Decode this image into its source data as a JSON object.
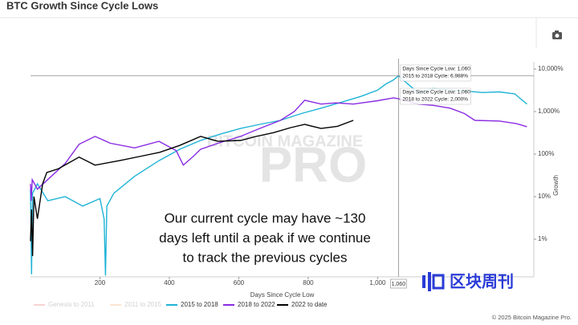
{
  "chart_data": {
    "type": "line",
    "title": "BTC Growth Since Cycle Lows",
    "x_label": "Days Since Cycle Low",
    "y_label": "Growth",
    "log_y": true,
    "xlim": [
      0,
      1450
    ],
    "ylim": [
      0.13,
      14800
    ],
    "xticks": [
      200,
      400,
      600,
      800,
      {
        "value": 1000,
        "label": "1,000"
      }
    ],
    "yticks": [
      {
        "value": 1,
        "label": "1%"
      },
      {
        "value": 10,
        "label": "10%"
      },
      {
        "value": 100,
        "label": "100%"
      },
      {
        "value": 1000,
        "label": "1,000%"
      },
      {
        "value": 10000,
        "label": "10,000%"
      }
    ],
    "crosshair": {
      "x": 1060,
      "x_label": "1,060",
      "y": 6988
    },
    "tooltips": [
      [
        "Days Since Cycle Low: 1,060",
        "2015 to 2018 Cycle: 6,988%"
      ],
      [
        "Days Since Cycle Low: 1,060",
        "2018 to 2022 Cycle: 2,000%"
      ]
    ],
    "annotation": [
      "Our current cycle may have ~130",
      "days left until a peak if we continue",
      "to track the previous cycles"
    ],
    "watermark": [
      "BITCOIN MAGAZINE",
      "PRO"
    ],
    "logo": "区块周刊",
    "credit": "© 2025 Bitcoin Magazine Pro.",
    "series": [
      {
        "name": "Genesis to 2011",
        "color": "#f0a0a0",
        "visible": false,
        "x": [],
        "values": []
      },
      {
        "name": "2011 to 2015",
        "color": "#f5c99a",
        "visible": false,
        "x": [],
        "values": []
      },
      {
        "name": "2015 to 2018",
        "color": "#1fb3d6",
        "visible": true,
        "x": [
          0,
          3,
          6,
          20,
          50,
          100,
          150,
          200,
          212,
          216,
          220,
          240,
          300,
          370,
          430,
          490,
          550,
          605,
          660,
          720,
          780,
          837,
          900,
          953,
          1000,
          1023,
          1045,
          1060,
          1080,
          1116,
          1160,
          1209,
          1260,
          1302,
          1350,
          1395,
          1430
        ],
        "values": [
          15,
          0.15,
          12,
          20,
          8,
          10,
          6,
          9,
          3,
          0.14,
          6,
          12,
          30,
          70,
          130,
          210,
          300,
          400,
          500,
          620,
          900,
          1200,
          1700,
          2300,
          3200,
          4400,
          5500,
          6988,
          5000,
          2800,
          3500,
          3200,
          3000,
          2800,
          2900,
          2600,
          1500
        ]
      },
      {
        "name": "2018 to 2022",
        "color": "#8a2be2",
        "visible": true,
        "x": [
          0,
          2,
          5,
          20,
          60,
          100,
          140,
          186,
          230,
          300,
          370,
          420,
          440,
          470,
          490,
          540,
          605,
          660,
          720,
          760,
          790,
          837,
          880,
          930,
          1000,
          1046,
          1060,
          1116,
          1160,
          1209,
          1250,
          1280,
          1350,
          1400,
          1430
        ],
        "values": [
          20,
          8,
          25,
          15,
          30,
          60,
          170,
          260,
          180,
          140,
          200,
          120,
          55,
          90,
          130,
          180,
          260,
          400,
          620,
          1000,
          1850,
          1500,
          1600,
          1500,
          1800,
          2100,
          2000,
          1500,
          1400,
          1200,
          900,
          620,
          600,
          520,
          440
        ]
      },
      {
        "name": "2022 to date",
        "color": "#000000",
        "visible": true,
        "x": [
          0,
          3,
          6,
          10,
          20,
          35,
          47,
          80,
          140,
          186,
          256,
          320,
          372,
          430,
          490,
          540,
          605,
          650,
          700,
          750,
          790,
          837,
          884,
          930
        ],
        "values": [
          0.9,
          5,
          0.4,
          10,
          3,
          20,
          37,
          45,
          85,
          55,
          70,
          90,
          110,
          160,
          260,
          200,
          210,
          260,
          320,
          420,
          500,
          400,
          450,
          620
        ]
      }
    ]
  }
}
